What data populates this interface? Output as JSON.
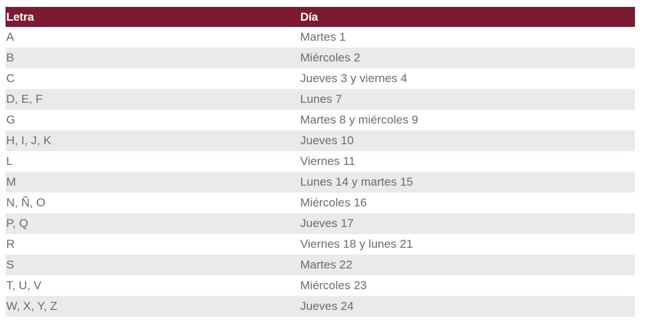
{
  "table": {
    "headers": [
      "Letra",
      "Día"
    ],
    "rows": [
      [
        "A",
        "Martes 1"
      ],
      [
        "B",
        "Miércoles 2"
      ],
      [
        "C",
        "Jueves 3 y viernes 4"
      ],
      [
        "D, E, F",
        "Lunes 7"
      ],
      [
        "G",
        "Martes 8 y miércoles 9"
      ],
      [
        "H, I, J, K",
        "Jueves 10"
      ],
      [
        "L",
        "Viernes 11"
      ],
      [
        "M",
        "Lunes 14 y martes 15"
      ],
      [
        "N, Ñ, O",
        "Miércoles 16"
      ],
      [
        "P, Q",
        "Jueves 17"
      ],
      [
        "R",
        "Viernes 18 y lunes 21"
      ],
      [
        "S",
        "Martes 22"
      ],
      [
        "T, U, V",
        "Miércoles 23"
      ],
      [
        "W, X, Y, Z",
        "Jueves 24"
      ]
    ]
  },
  "colors": {
    "header_background": "#7b1a30",
    "header_text": "#ffffff",
    "row_alt_background": "#ebe9ec",
    "body_text": "#6b6b6b"
  }
}
